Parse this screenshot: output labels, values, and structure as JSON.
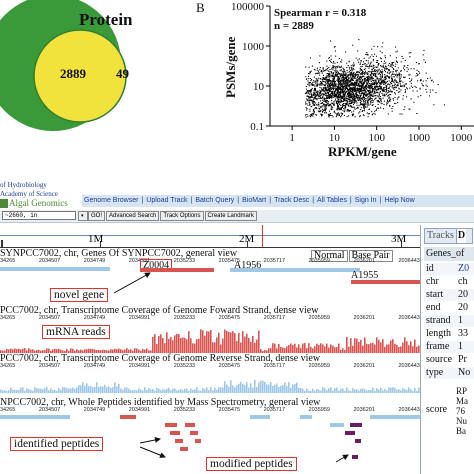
{
  "venn": {
    "label_protein": "Protein",
    "overlap_count": "2889",
    "right_count": "49",
    "colors": {
      "green": "#3a9a3a",
      "yellow": "#f2e23c"
    }
  },
  "chart_data": {
    "type": "scatter",
    "panel_label": "B",
    "title": "",
    "xlabel": "RPKM/gene",
    "ylabel": "PSMs/gene",
    "xscale": "log",
    "yscale": "log",
    "xlim": [
      0.3,
      20000
    ],
    "ylim": [
      0.1,
      100000
    ],
    "x_ticks": [
      "1",
      "10",
      "100",
      "1000",
      "1000"
    ],
    "y_ticks": [
      "100000",
      "1000",
      "10",
      "0.1"
    ],
    "annotations": [
      "Spearman r = 0.318",
      "n = 2889"
    ],
    "n_points": 2889,
    "point_color": "#000000",
    "cloud": {
      "x_center": 20,
      "x_log_sd": 0.6,
      "y_center": 8,
      "y_log_sd": 0.55,
      "floor_y": 0.6
    }
  },
  "browser": {
    "institute_line1": "of Hydrobiology",
    "institute_line2": "Academy of Science",
    "brand": "Algal Genomics",
    "nav": [
      "Genome Browser",
      "Upload Track",
      "Batch Query",
      "BioMart",
      "Track Desc",
      "All Tables",
      "Sign In",
      "Help Now"
    ],
    "position_value": "~2660, in",
    "buttons": [
      "GO!",
      "Advanced Search",
      "Track Options",
      "Create Landmark"
    ],
    "ruler": {
      "marks": [
        "1M",
        "2M",
        "3M"
      ]
    },
    "coord_ticks": [
      "34265",
      "2034507",
      "2034749",
      "2034991",
      "2035233",
      "2035475",
      "2035717",
      "2035959",
      "2036201",
      "2036443"
    ],
    "tracks": [
      {
        "title": "SYNPCC7002, chr, Genes Of SYNPCC7002, general view"
      },
      {
        "title": "PCC7002, chr, Transcriptome Coverage of Genome Foward Strand, dense view"
      },
      {
        "title": "PCC7002, chr, Transcriptome Coverage of Genome Reverse Strand, dense view"
      },
      {
        "title": "NPCC7002, chr, Whole Peptides identified by Mass Spectrometry, general view"
      }
    ],
    "gene_labels": {
      "z": "Z0004",
      "a1": "A1956",
      "a2": "A1955"
    },
    "view_buttons": {
      "normal": "Normal",
      "base_pair": "Base Pair"
    },
    "callouts": {
      "novel_gene": "novel gene",
      "mrna": "mRNA reads",
      "identified": "identified peptides",
      "modified": "modified peptides"
    },
    "side_panel": {
      "tab_tracks": "Tracks",
      "tab_second": "D",
      "header": "Genes_of",
      "rows": [
        {
          "label": "id",
          "value": "Z0"
        },
        {
          "label": "chr",
          "value": "ch"
        },
        {
          "label": "start",
          "value": "20"
        },
        {
          "label": "end",
          "value": "20"
        },
        {
          "label": "strand",
          "value": "1"
        },
        {
          "label": "length",
          "value": "33"
        },
        {
          "label": "frame",
          "value": "1"
        },
        {
          "label": "source",
          "value": "Pr"
        },
        {
          "label": "type",
          "value": "No"
        }
      ],
      "score_label": "score",
      "score_values": [
        "RP",
        "Ma",
        "76",
        "Nu",
        "Ba"
      ]
    },
    "colors": {
      "red": "#d9534f",
      "blue": "#9fc8e8",
      "purple": "#6a1b6a",
      "nav_bg": "#d7e4f2",
      "brand": "#4a8a3a"
    }
  }
}
